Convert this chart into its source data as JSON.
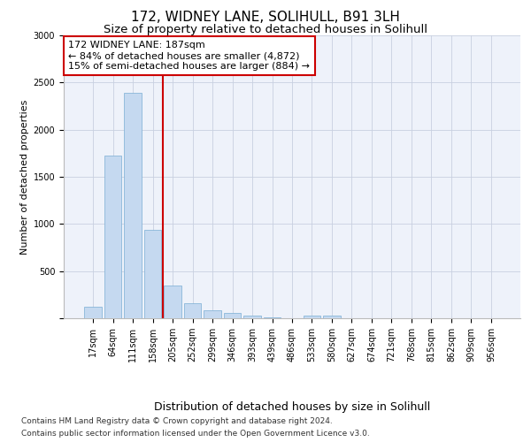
{
  "title1": "172, WIDNEY LANE, SOLIHULL, B91 3LH",
  "title2": "Size of property relative to detached houses in Solihull",
  "xlabel": "Distribution of detached houses by size in Solihull",
  "ylabel": "Number of detached properties",
  "categories": [
    "17sqm",
    "64sqm",
    "111sqm",
    "158sqm",
    "205sqm",
    "252sqm",
    "299sqm",
    "346sqm",
    "393sqm",
    "439sqm",
    "486sqm",
    "533sqm",
    "580sqm",
    "627sqm",
    "674sqm",
    "721sqm",
    "768sqm",
    "815sqm",
    "862sqm",
    "909sqm",
    "956sqm"
  ],
  "values": [
    120,
    1725,
    2390,
    940,
    350,
    155,
    80,
    55,
    30,
    5,
    0,
    30,
    30,
    0,
    0,
    0,
    0,
    0,
    0,
    0,
    0
  ],
  "bar_color": "#c5d9f0",
  "bar_edge_color": "#7aadd4",
  "vline_color": "#cc0000",
  "annotation_text": "172 WIDNEY LANE: 187sqm\n← 84% of detached houses are smaller (4,872)\n15% of semi-detached houses are larger (884) →",
  "annotation_box_color": "#ffffff",
  "annotation_box_edge": "#cc0000",
  "ylim": [
    0,
    3000
  ],
  "yticks": [
    0,
    500,
    1000,
    1500,
    2000,
    2500,
    3000
  ],
  "footer1": "Contains HM Land Registry data © Crown copyright and database right 2024.",
  "footer2": "Contains public sector information licensed under the Open Government Licence v3.0.",
  "bg_color": "#eef2fa",
  "grid_color": "#c8d0e0",
  "title1_fontsize": 11,
  "title2_fontsize": 9.5,
  "annot_fontsize": 8,
  "ylabel_fontsize": 8,
  "xlabel_fontsize": 9,
  "tick_fontsize": 7,
  "footer_fontsize": 6.5
}
